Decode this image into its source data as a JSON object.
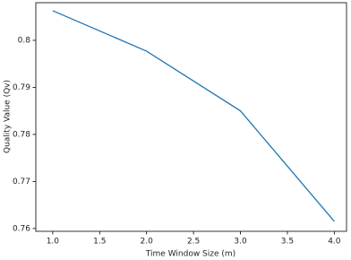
{
  "chart_data": {
    "type": "line",
    "x_label": "Time Window Size (m)",
    "y_label": "Quality Value (Qv)",
    "x": [
      1,
      2,
      3,
      4
    ],
    "series": [
      {
        "color": "#1f77b4",
        "values": [
          0.8063,
          0.7977,
          0.785,
          0.7615
        ]
      }
    ],
    "xlim": [
      0.82,
      4.13
    ],
    "xticks": [
      {
        "value": 1,
        "label": "1.0"
      },
      {
        "value": 1.5,
        "label": "1.5"
      },
      {
        "value": 2,
        "label": "2.0"
      },
      {
        "value": 2.5,
        "label": "2.5"
      },
      {
        "value": 3,
        "label": "3.0"
      },
      {
        "value": 3.5,
        "label": "3.5"
      },
      {
        "value": 4,
        "label": "4.0"
      }
    ],
    "ylim": [
      0.7594,
      0.808
    ],
    "yticks": [
      0.76,
      0.77,
      0.78,
      0.79,
      0.8
    ]
  }
}
